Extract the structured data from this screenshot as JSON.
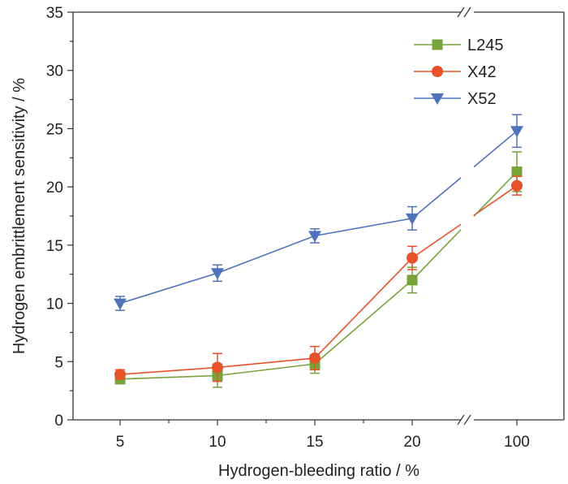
{
  "chart_data": {
    "type": "line",
    "title": "",
    "xlabel": "Hydrogen-bleeding ratio / %",
    "ylabel": "Hydrogen embrittlement sensitivity / %",
    "categories": [
      "5",
      "10",
      "15",
      "20",
      "100"
    ],
    "x": [
      5,
      10,
      15,
      20,
      100
    ],
    "x_axis_break": "between 20 and 100",
    "ylim": [
      0,
      35
    ],
    "yticks": [
      "0",
      "5",
      "10",
      "15",
      "20",
      "25",
      "30",
      "35"
    ],
    "grid": false,
    "legend_position": "top-right",
    "series": [
      {
        "name": "L245",
        "color": "#77a33a",
        "marker": "square",
        "values": [
          3.5,
          3.8,
          4.8,
          12.0,
          21.3
        ],
        "errors": [
          0.4,
          1.0,
          0.8,
          1.1,
          1.7
        ]
      },
      {
        "name": "X42",
        "color": "#e8522a",
        "marker": "circle",
        "values": [
          3.9,
          4.5,
          5.3,
          13.9,
          20.1
        ],
        "errors": [
          0.4,
          1.2,
          1.0,
          1.0,
          0.8
        ]
      },
      {
        "name": "X52",
        "color": "#4f72bd",
        "marker": "triangle-down",
        "values": [
          10.0,
          12.6,
          15.8,
          17.3,
          24.8
        ],
        "errors": [
          0.6,
          0.7,
          0.6,
          1.0,
          1.4
        ]
      }
    ]
  }
}
